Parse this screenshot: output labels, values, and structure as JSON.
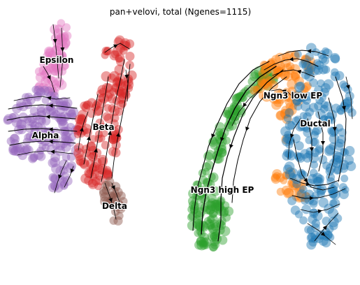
{
  "chart_data": {
    "type": "scatter",
    "title": "pan+velovi, total (Ngenes=1115)",
    "overlay": "velocity streamlines",
    "axes_visible": false,
    "grid": false,
    "legend": "on data",
    "series": [
      {
        "name": "Epsilon",
        "color": "#e377c2"
      },
      {
        "name": "Alpha",
        "color": "#9467bd"
      },
      {
        "name": "Beta",
        "color": "#d62728"
      },
      {
        "name": "Delta",
        "color": "#8c564b"
      },
      {
        "name": "Ngn3 low EP",
        "color": "#ff7f0e"
      },
      {
        "name": "Ductal",
        "color": "#1f77b4"
      },
      {
        "name": "Ngn3 high EP",
        "color": "#2ca02c"
      }
    ]
  }
}
